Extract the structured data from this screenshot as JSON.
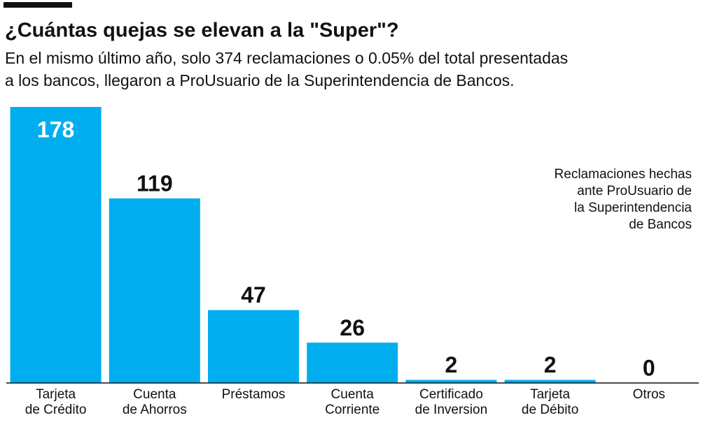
{
  "chart_data": {
    "type": "bar",
    "title": "¿Cuántas quejas se elevan a la \"Super\"?",
    "subtitle": [
      "En el mismo último año, solo 374 reclamaciones o 0.05% del total presentadas",
      "a los bancos, llegaron a ProUsuario de la Superintendencia de Bancos."
    ],
    "annotation": [
      "Reclamaciones hechas",
      "ante ProUsuario de",
      "la Superintendencia",
      "de Bancos"
    ],
    "categories": [
      [
        "Tarjeta",
        "de Crédito"
      ],
      [
        "Cuenta",
        "de Ahorros"
      ],
      [
        "Préstamos"
      ],
      [
        "Cuenta",
        "Corriente"
      ],
      [
        "Certificado",
        "de Inversion"
      ],
      [
        "Tarjeta",
        "de Débito"
      ],
      [
        "Otros"
      ]
    ],
    "values": [
      178,
      119,
      47,
      26,
      2,
      2,
      0
    ],
    "color": "#00aeef"
  }
}
